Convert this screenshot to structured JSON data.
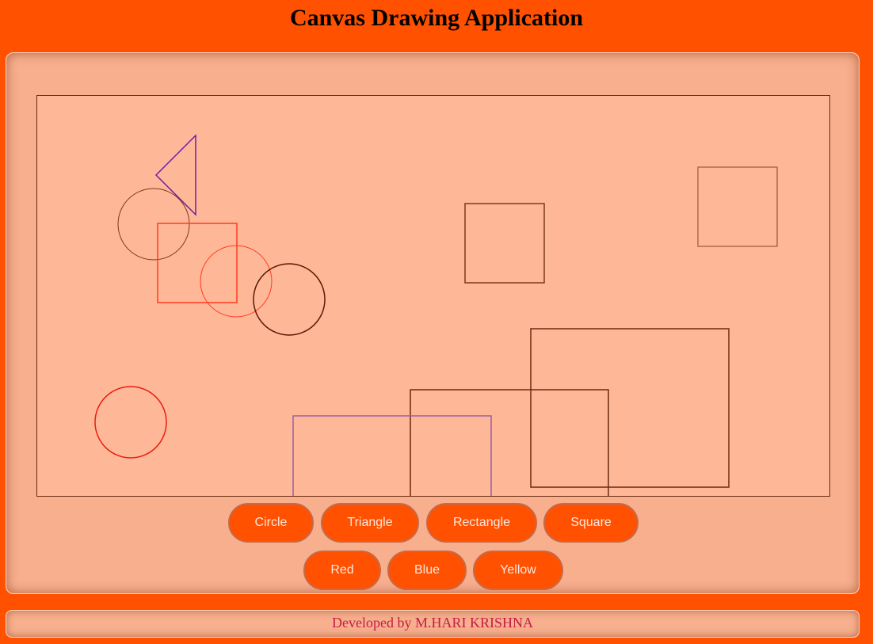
{
  "header": {
    "title": "Canvas Drawing Application"
  },
  "shape_buttons": [
    {
      "label": "Circle"
    },
    {
      "label": "Triangle"
    },
    {
      "label": "Rectangle"
    },
    {
      "label": "Square"
    }
  ],
  "color_buttons": [
    {
      "label": "Red"
    },
    {
      "label": "Blue"
    },
    {
      "label": "Yellow"
    }
  ],
  "colors": {
    "page_background": "#ff5100",
    "panel_background": "#f7af8e",
    "canvas_background": "#ffb897",
    "button_background": "#ff5100",
    "footer_text": "#c41d45"
  },
  "footer": {
    "text": "Developed by M.HARI KRISHNA"
  }
}
